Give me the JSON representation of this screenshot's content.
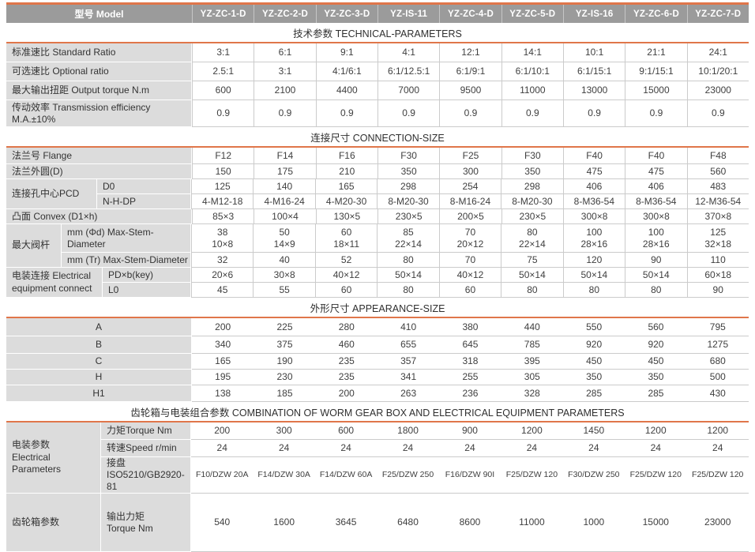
{
  "colors": {
    "accent_orange": "#e0764a",
    "header_gray": "#9b9b9b",
    "label_gray": "#dcdcdc",
    "grid_line": "#cbcbcb"
  },
  "header": {
    "model_label": "型号 Model",
    "models": [
      "YZ-ZC-1-D",
      "YZ-ZC-2-D",
      "YZ-ZC-3-D",
      "YZ-IS-11",
      "YZ-ZC-4-D",
      "YZ-ZC-5-D",
      "YZ-IS-16",
      "YZ-ZC-6-D",
      "YZ-ZC-7-D"
    ]
  },
  "sections": [
    {
      "title": "技术参数 TECHNICAL-PARAMETERS",
      "rows": [
        {
          "label": "标准速比 Standard  Ratio",
          "values": [
            "3:1",
            "6:1",
            "9:1",
            "4:1",
            "12:1",
            "14:1",
            "10:1",
            "21:1",
            "24:1"
          ]
        },
        {
          "label": "可选速比 Optional  ratio",
          "values": [
            "2.5:1",
            "3:1",
            "4:1/6:1",
            "6:1/12.5:1",
            "6:1/9:1",
            "6:1/10:1",
            "6:1/15:1",
            "9:1/15:1",
            "10:1/20:1"
          ]
        },
        {
          "label": "最大输出扭距 Output torque N.m",
          "values": [
            "600",
            "2100",
            "4400",
            "7000",
            "9500",
            "11000",
            "13000",
            "15000",
            "23000"
          ]
        },
        {
          "label": "传动效率  Transmission efficiency\nM.A.±10%",
          "values": [
            "0.9",
            "0.9",
            "0.9",
            "0.9",
            "0.9",
            "0.9",
            "0.9",
            "0.9",
            "0.9"
          ]
        }
      ]
    },
    {
      "title": "连接尺寸 CONNECTION-SIZE",
      "rows": [
        {
          "label": "法兰号 Flange",
          "values": [
            "F12",
            "F14",
            "F16",
            "F30",
            "F25",
            "F30",
            "F40",
            "F40",
            "F48"
          ]
        },
        {
          "label": "法兰外圆(D)",
          "values": [
            "150",
            "175",
            "210",
            "350",
            "300",
            "350",
            "475",
            "475",
            "560"
          ]
        },
        {
          "group": "连接孔中心PCD",
          "span": 2,
          "sub": "D0",
          "values": [
            "125",
            "140",
            "165",
            "298",
            "254",
            "298",
            "406",
            "406",
            "483"
          ]
        },
        {
          "sub": "N-H-DP",
          "values": [
            "4-M12-18",
            "4-M16-24",
            "4-M20-30",
            "8-M20-30",
            "8-M16-24",
            "8-M20-30",
            "8-M36-54",
            "8-M36-54",
            "12-M36-54"
          ]
        },
        {
          "label": "凸面 Convex (D1×h)",
          "values": [
            "85×3",
            "100×4",
            "130×5",
            "230×5",
            "200×5",
            "230×5",
            "300×8",
            "300×8",
            "370×8"
          ]
        },
        {
          "group": "最大阀杆",
          "span": 2,
          "sub": "mm (Φd) Max-Stem-Diameter",
          "values": [
            "38\n10×8",
            "50\n14×9",
            "60\n18×11",
            "85\n22×14",
            "70\n20×12",
            "80\n22×14",
            "100\n28×16",
            "100\n28×16",
            "125\n32×18"
          ]
        },
        {
          "sub": "mm (Tr) Max-Stem-Diameter",
          "values": [
            "32",
            "40",
            "52",
            "80",
            "70",
            "75",
            "120",
            "90",
            "110"
          ]
        },
        {
          "group": "电装连接 Electrical\nequipment connect",
          "span": 2,
          "sub": "PD×b(key)",
          "values": [
            "20×6",
            "30×8",
            "40×12",
            "50×14",
            "40×12",
            "50×14",
            "50×14",
            "50×14",
            "60×18"
          ]
        },
        {
          "sub": "L0",
          "values": [
            "45",
            "55",
            "60",
            "80",
            "60",
            "80",
            "80",
            "80",
            "90"
          ]
        }
      ]
    },
    {
      "title": "外形尺寸 APPEARANCE-SIZE",
      "rows": [
        {
          "label": "A",
          "values": [
            "200",
            "225",
            "280",
            "410",
            "380",
            "440",
            "550",
            "560",
            "795"
          ]
        },
        {
          "label": "B",
          "values": [
            "340",
            "375",
            "460",
            "655",
            "645",
            "785",
            "920",
            "920",
            "1275"
          ]
        },
        {
          "label": "C",
          "values": [
            "165",
            "190",
            "235",
            "357",
            "318",
            "395",
            "450",
            "450",
            "680"
          ]
        },
        {
          "label": "H",
          "values": [
            "195",
            "230",
            "235",
            "341",
            "255",
            "305",
            "350",
            "350",
            "500"
          ]
        },
        {
          "label": "H1",
          "values": [
            "138",
            "185",
            "200",
            "263",
            "236",
            "328",
            "285",
            "285",
            "430"
          ]
        }
      ]
    },
    {
      "title": "齿轮箱与电装组合参数 COMBINATION OF WORM GEAR BOX AND ELECTRICAL EQUIPMENT PARAMETERS",
      "rows": [
        {
          "group": "电装参数\nElectrical Parameters",
          "span": 3,
          "sub": "力矩Torque Nm",
          "values": [
            "200",
            "300",
            "600",
            "1800",
            "900",
            "1200",
            "1450",
            "1200",
            "1200"
          ]
        },
        {
          "sub": "转速Speed r/min",
          "values": [
            "24",
            "24",
            "24",
            "24",
            "24",
            "24",
            "24",
            "24",
            "24"
          ]
        },
        {
          "sub": "接盘\nISO5210/GB2920-81",
          "values": [
            "F10/DZW 20A",
            "F14/DZW 30A",
            "F14/DZW 60A",
            "F25/DZW 250",
            "F16/DZW 90I",
            "F25/DZW 120",
            "F30/DZW 250",
            "F25/DZW 120",
            "F25/DZW 120"
          ]
        },
        {
          "group": "齿轮箱参数",
          "span": 1,
          "sub": "输出力矩\nTorque Nm",
          "values": [
            "540",
            "1600",
            "3645",
            "6480",
            "8600",
            "11000",
            "1000",
            "15000",
            "23000"
          ]
        }
      ]
    }
  ]
}
